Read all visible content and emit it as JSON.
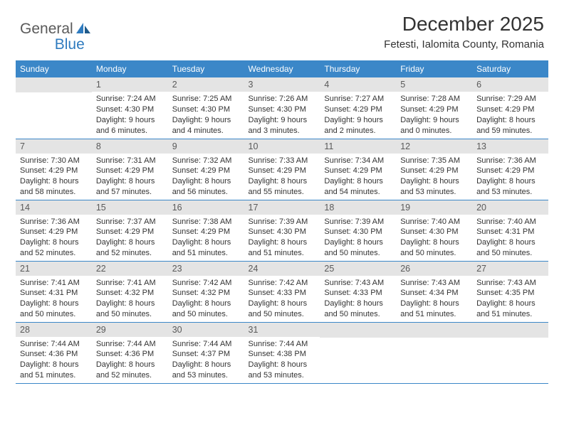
{
  "brand": {
    "part1": "General",
    "part2": "Blue"
  },
  "title": "December 2025",
  "location": "Fetesti, Ialomita County, Romania",
  "colors": {
    "header_bar": "#3b87c8",
    "daynum_bg": "#e4e4e4",
    "text": "#333333",
    "logo_gray": "#5a5a5a",
    "logo_blue": "#2f7bbf",
    "row_border": "#3b87c8"
  },
  "dow": [
    "Sunday",
    "Monday",
    "Tuesday",
    "Wednesday",
    "Thursday",
    "Friday",
    "Saturday"
  ],
  "weeks": [
    [
      null,
      {
        "n": "1",
        "sr": "7:24 AM",
        "ss": "4:30 PM",
        "dl": "9 hours and 6 minutes."
      },
      {
        "n": "2",
        "sr": "7:25 AM",
        "ss": "4:30 PM",
        "dl": "9 hours and 4 minutes."
      },
      {
        "n": "3",
        "sr": "7:26 AM",
        "ss": "4:30 PM",
        "dl": "9 hours and 3 minutes."
      },
      {
        "n": "4",
        "sr": "7:27 AM",
        "ss": "4:29 PM",
        "dl": "9 hours and 2 minutes."
      },
      {
        "n": "5",
        "sr": "7:28 AM",
        "ss": "4:29 PM",
        "dl": "9 hours and 0 minutes."
      },
      {
        "n": "6",
        "sr": "7:29 AM",
        "ss": "4:29 PM",
        "dl": "8 hours and 59 minutes."
      }
    ],
    [
      {
        "n": "7",
        "sr": "7:30 AM",
        "ss": "4:29 PM",
        "dl": "8 hours and 58 minutes."
      },
      {
        "n": "8",
        "sr": "7:31 AM",
        "ss": "4:29 PM",
        "dl": "8 hours and 57 minutes."
      },
      {
        "n": "9",
        "sr": "7:32 AM",
        "ss": "4:29 PM",
        "dl": "8 hours and 56 minutes."
      },
      {
        "n": "10",
        "sr": "7:33 AM",
        "ss": "4:29 PM",
        "dl": "8 hours and 55 minutes."
      },
      {
        "n": "11",
        "sr": "7:34 AM",
        "ss": "4:29 PM",
        "dl": "8 hours and 54 minutes."
      },
      {
        "n": "12",
        "sr": "7:35 AM",
        "ss": "4:29 PM",
        "dl": "8 hours and 53 minutes."
      },
      {
        "n": "13",
        "sr": "7:36 AM",
        "ss": "4:29 PM",
        "dl": "8 hours and 53 minutes."
      }
    ],
    [
      {
        "n": "14",
        "sr": "7:36 AM",
        "ss": "4:29 PM",
        "dl": "8 hours and 52 minutes."
      },
      {
        "n": "15",
        "sr": "7:37 AM",
        "ss": "4:29 PM",
        "dl": "8 hours and 52 minutes."
      },
      {
        "n": "16",
        "sr": "7:38 AM",
        "ss": "4:29 PM",
        "dl": "8 hours and 51 minutes."
      },
      {
        "n": "17",
        "sr": "7:39 AM",
        "ss": "4:30 PM",
        "dl": "8 hours and 51 minutes."
      },
      {
        "n": "18",
        "sr": "7:39 AM",
        "ss": "4:30 PM",
        "dl": "8 hours and 50 minutes."
      },
      {
        "n": "19",
        "sr": "7:40 AM",
        "ss": "4:30 PM",
        "dl": "8 hours and 50 minutes."
      },
      {
        "n": "20",
        "sr": "7:40 AM",
        "ss": "4:31 PM",
        "dl": "8 hours and 50 minutes."
      }
    ],
    [
      {
        "n": "21",
        "sr": "7:41 AM",
        "ss": "4:31 PM",
        "dl": "8 hours and 50 minutes."
      },
      {
        "n": "22",
        "sr": "7:41 AM",
        "ss": "4:32 PM",
        "dl": "8 hours and 50 minutes."
      },
      {
        "n": "23",
        "sr": "7:42 AM",
        "ss": "4:32 PM",
        "dl": "8 hours and 50 minutes."
      },
      {
        "n": "24",
        "sr": "7:42 AM",
        "ss": "4:33 PM",
        "dl": "8 hours and 50 minutes."
      },
      {
        "n": "25",
        "sr": "7:43 AM",
        "ss": "4:33 PM",
        "dl": "8 hours and 50 minutes."
      },
      {
        "n": "26",
        "sr": "7:43 AM",
        "ss": "4:34 PM",
        "dl": "8 hours and 51 minutes."
      },
      {
        "n": "27",
        "sr": "7:43 AM",
        "ss": "4:35 PM",
        "dl": "8 hours and 51 minutes."
      }
    ],
    [
      {
        "n": "28",
        "sr": "7:44 AM",
        "ss": "4:36 PM",
        "dl": "8 hours and 51 minutes."
      },
      {
        "n": "29",
        "sr": "7:44 AM",
        "ss": "4:36 PM",
        "dl": "8 hours and 52 minutes."
      },
      {
        "n": "30",
        "sr": "7:44 AM",
        "ss": "4:37 PM",
        "dl": "8 hours and 53 minutes."
      },
      {
        "n": "31",
        "sr": "7:44 AM",
        "ss": "4:38 PM",
        "dl": "8 hours and 53 minutes."
      },
      null,
      null,
      null
    ]
  ],
  "labels": {
    "sunrise": "Sunrise:",
    "sunset": "Sunset:",
    "daylight": "Daylight:"
  }
}
